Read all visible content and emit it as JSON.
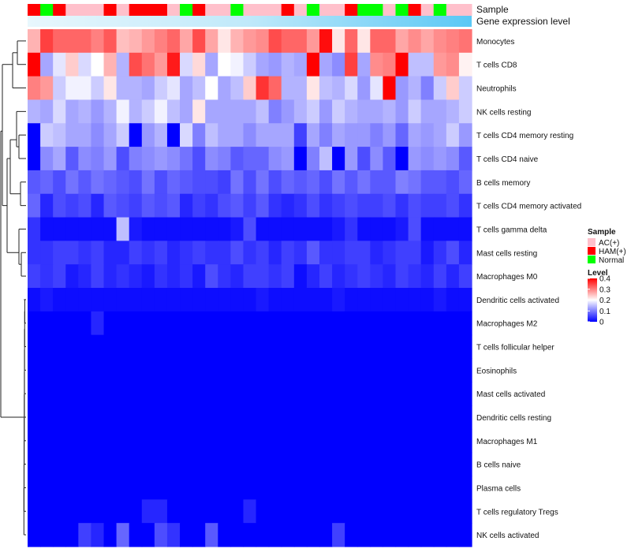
{
  "chart_data": {
    "type": "heatmap",
    "annotation_labels": {
      "sample": "Sample",
      "gene": "Gene expression level"
    },
    "rows": [
      "Monocytes",
      "T cells CD8",
      "Neutrophils",
      "NK cells resting",
      "T cells CD4 memory resting",
      "T cells CD4 naive",
      "B cells memory",
      "T cells CD4 memory activated",
      "T cells gamma delta",
      "Mast cells resting",
      "Macrophages M0",
      "Dendritic cells activated",
      "Macrophages M2",
      "T cells follicular helper",
      "Eosinophils",
      "Mast cells activated",
      "Dendritic cells resting",
      "Macrophages M1",
      "B cells naive",
      "Plasma cells",
      "T cells regulatory  Tregs",
      "NK cells activated"
    ],
    "sample_groups": [
      "H",
      "N",
      "H",
      "A",
      "A",
      "A",
      "H",
      "A",
      "H",
      "H",
      "H",
      "A",
      "N",
      "H",
      "A",
      "A",
      "N",
      "A",
      "A",
      "A",
      "H",
      "A",
      "N",
      "A",
      "A",
      "H",
      "N",
      "N",
      "A",
      "N",
      "H",
      "A",
      "N",
      "A",
      "A"
    ],
    "values": [
      [
        0.26,
        0.35,
        0.32,
        0.32,
        0.32,
        0.3,
        0.33,
        0.25,
        0.26,
        0.28,
        0.3,
        0.32,
        0.27,
        0.34,
        0.27,
        0.22,
        0.26,
        0.28,
        0.29,
        0.34,
        0.32,
        0.32,
        0.28,
        0.39,
        0.22,
        0.32,
        0.22,
        0.32,
        0.32,
        0.27,
        0.29,
        0.27,
        0.29,
        0.3,
        0.31
      ],
      [
        0.4,
        0.13,
        0.18,
        0.24,
        0.17,
        0.2,
        0.26,
        0.14,
        0.34,
        0.31,
        0.28,
        0.38,
        0.17,
        0.23,
        0.13,
        0.2,
        0.19,
        0.16,
        0.13,
        0.12,
        0.14,
        0.13,
        0.42,
        0.13,
        0.11,
        0.35,
        0.13,
        0.29,
        0.3,
        0.4,
        0.15,
        0.15,
        0.28,
        0.29,
        0.21
      ],
      [
        0.3,
        0.28,
        0.16,
        0.19,
        0.19,
        0.16,
        0.22,
        0.14,
        0.14,
        0.13,
        0.16,
        0.18,
        0.13,
        0.15,
        0.2,
        0.13,
        0.15,
        0.24,
        0.36,
        0.32,
        0.14,
        0.14,
        0.22,
        0.15,
        0.14,
        0.17,
        0.12,
        0.18,
        0.4,
        0.12,
        0.14,
        0.1,
        0.16,
        0.24,
        0.16
      ],
      [
        0.14,
        0.13,
        0.17,
        0.13,
        0.14,
        0.12,
        0.14,
        0.19,
        0.14,
        0.16,
        0.19,
        0.15,
        0.13,
        0.22,
        0.13,
        0.13,
        0.13,
        0.13,
        0.15,
        0.1,
        0.12,
        0.14,
        0.16,
        0.12,
        0.16,
        0.14,
        0.13,
        0.13,
        0.14,
        0.12,
        0.16,
        0.13,
        0.13,
        0.14,
        0.16
      ],
      [
        0.0,
        0.16,
        0.15,
        0.13,
        0.13,
        0.11,
        0.13,
        0.16,
        0.0,
        0.12,
        0.14,
        0.0,
        0.17,
        0.1,
        0.15,
        0.13,
        0.13,
        0.11,
        0.13,
        0.13,
        0.13,
        0.05,
        0.13,
        0.1,
        0.13,
        0.12,
        0.12,
        0.1,
        0.12,
        0.08,
        0.13,
        0.12,
        0.13,
        0.16,
        0.12
      ],
      [
        0.0,
        0.11,
        0.13,
        0.07,
        0.11,
        0.1,
        0.12,
        0.06,
        0.1,
        0.11,
        0.12,
        0.11,
        0.09,
        0.06,
        0.11,
        0.1,
        0.07,
        0.08,
        0.08,
        0.11,
        0.12,
        0.0,
        0.1,
        0.15,
        0.0,
        0.12,
        0.06,
        0.11,
        0.07,
        0.0,
        0.12,
        0.11,
        0.12,
        0.11,
        0.07
      ],
      [
        0.07,
        0.08,
        0.06,
        0.09,
        0.07,
        0.09,
        0.08,
        0.07,
        0.06,
        0.09,
        0.06,
        0.08,
        0.07,
        0.06,
        0.06,
        0.05,
        0.09,
        0.06,
        0.09,
        0.06,
        0.08,
        0.07,
        0.08,
        0.06,
        0.09,
        0.07,
        0.09,
        0.07,
        0.07,
        0.1,
        0.09,
        0.07,
        0.07,
        0.06,
        0.08
      ],
      [
        0.08,
        0.03,
        0.06,
        0.05,
        0.06,
        0.03,
        0.07,
        0.06,
        0.05,
        0.07,
        0.06,
        0.07,
        0.03,
        0.05,
        0.04,
        0.06,
        0.07,
        0.05,
        0.07,
        0.04,
        0.03,
        0.04,
        0.06,
        0.04,
        0.05,
        0.06,
        0.05,
        0.05,
        0.06,
        0.04,
        0.06,
        0.05,
        0.05,
        0.06,
        0.04
      ],
      [
        0.04,
        0.01,
        0.01,
        0.01,
        0.01,
        0.01,
        0.01,
        0.15,
        0.02,
        0.01,
        0.01,
        0.01,
        0.01,
        0.01,
        0.01,
        0.01,
        0.02,
        0.06,
        0.01,
        0.01,
        0.01,
        0.01,
        0.01,
        0.01,
        0.02,
        0.04,
        0.01,
        0.01,
        0.01,
        0.02,
        0.06,
        0.01,
        0.01,
        0.01,
        0.01
      ],
      [
        0.04,
        0.04,
        0.05,
        0.05,
        0.04,
        0.05,
        0.03,
        0.03,
        0.05,
        0.04,
        0.05,
        0.03,
        0.04,
        0.05,
        0.04,
        0.04,
        0.06,
        0.04,
        0.05,
        0.03,
        0.05,
        0.04,
        0.07,
        0.04,
        0.04,
        0.05,
        0.05,
        0.03,
        0.04,
        0.05,
        0.05,
        0.02,
        0.04,
        0.06,
        0.03
      ],
      [
        0.05,
        0.04,
        0.05,
        0.02,
        0.03,
        0.05,
        0.03,
        0.04,
        0.03,
        0.02,
        0.04,
        0.03,
        0.04,
        0.02,
        0.06,
        0.04,
        0.03,
        0.05,
        0.05,
        0.04,
        0.05,
        0.01,
        0.03,
        0.05,
        0.03,
        0.04,
        0.05,
        0.04,
        0.03,
        0.05,
        0.04,
        0.03,
        0.05,
        0.03,
        0.05
      ],
      [
        0.01,
        0.02,
        0.01,
        0.01,
        0.01,
        0.01,
        0.01,
        0.01,
        0.01,
        0.01,
        0.01,
        0.01,
        0.01,
        0.01,
        0.01,
        0.01,
        0.01,
        0.01,
        0.02,
        0.01,
        0.01,
        0.01,
        0.01,
        0.01,
        0.02,
        0.01,
        0.01,
        0.01,
        0.01,
        0.01,
        0.01,
        0.01,
        0.02,
        0.01,
        0.01
      ],
      [
        0.0,
        0.0,
        0.0,
        0.0,
        0.0,
        0.03,
        0.0,
        0.0,
        0.0,
        0.0,
        0.0,
        0.0,
        0.0,
        0.0,
        0.0,
        0.0,
        0.0,
        0.0,
        0.0,
        0.0,
        0.0,
        0.0,
        0.0,
        0.0,
        0.0,
        0.0,
        0.0,
        0.0,
        0.0,
        0.0,
        0.0,
        0.0,
        0.0,
        0.0,
        0.0
      ],
      [
        0.0,
        0.0,
        0.0,
        0.0,
        0.0,
        0.0,
        0.0,
        0.0,
        0.0,
        0.0,
        0.0,
        0.0,
        0.0,
        0.0,
        0.0,
        0.0,
        0.0,
        0.0,
        0.0,
        0.0,
        0.0,
        0.0,
        0.0,
        0.0,
        0.0,
        0.0,
        0.0,
        0.0,
        0.0,
        0.0,
        0.0,
        0.0,
        0.0,
        0.0,
        0.0
      ],
      [
        0.0,
        0.0,
        0.0,
        0.0,
        0.0,
        0.0,
        0.0,
        0.0,
        0.0,
        0.0,
        0.0,
        0.0,
        0.0,
        0.0,
        0.0,
        0.0,
        0.0,
        0.0,
        0.0,
        0.0,
        0.0,
        0.0,
        0.0,
        0.0,
        0.0,
        0.0,
        0.0,
        0.0,
        0.0,
        0.0,
        0.0,
        0.0,
        0.0,
        0.0,
        0.0
      ],
      [
        0.0,
        0.0,
        0.0,
        0.0,
        0.0,
        0.0,
        0.0,
        0.0,
        0.0,
        0.0,
        0.0,
        0.0,
        0.0,
        0.0,
        0.0,
        0.0,
        0.0,
        0.0,
        0.0,
        0.0,
        0.0,
        0.0,
        0.0,
        0.0,
        0.0,
        0.0,
        0.0,
        0.0,
        0.0,
        0.0,
        0.0,
        0.0,
        0.0,
        0.0,
        0.0
      ],
      [
        0.0,
        0.0,
        0.0,
        0.0,
        0.0,
        0.0,
        0.0,
        0.0,
        0.0,
        0.0,
        0.0,
        0.0,
        0.0,
        0.0,
        0.0,
        0.0,
        0.0,
        0.0,
        0.0,
        0.0,
        0.0,
        0.0,
        0.0,
        0.0,
        0.0,
        0.0,
        0.0,
        0.0,
        0.0,
        0.0,
        0.0,
        0.0,
        0.0,
        0.0,
        0.0
      ],
      [
        0.0,
        0.0,
        0.0,
        0.0,
        0.0,
        0.0,
        0.0,
        0.0,
        0.0,
        0.0,
        0.0,
        0.0,
        0.0,
        0.0,
        0.0,
        0.0,
        0.0,
        0.0,
        0.0,
        0.0,
        0.0,
        0.0,
        0.0,
        0.0,
        0.0,
        0.0,
        0.0,
        0.0,
        0.0,
        0.0,
        0.0,
        0.0,
        0.0,
        0.0,
        0.0
      ],
      [
        0.0,
        0.0,
        0.0,
        0.0,
        0.0,
        0.0,
        0.0,
        0.0,
        0.0,
        0.0,
        0.0,
        0.0,
        0.0,
        0.0,
        0.0,
        0.0,
        0.0,
        0.0,
        0.0,
        0.0,
        0.0,
        0.0,
        0.0,
        0.0,
        0.0,
        0.0,
        0.0,
        0.0,
        0.0,
        0.0,
        0.0,
        0.0,
        0.0,
        0.0,
        0.0
      ],
      [
        0.0,
        0.0,
        0.0,
        0.0,
        0.0,
        0.0,
        0.0,
        0.0,
        0.0,
        0.0,
        0.0,
        0.0,
        0.0,
        0.0,
        0.0,
        0.0,
        0.0,
        0.0,
        0.0,
        0.0,
        0.0,
        0.0,
        0.0,
        0.0,
        0.0,
        0.0,
        0.0,
        0.0,
        0.0,
        0.0,
        0.0,
        0.0,
        0.0,
        0.0,
        0.0
      ],
      [
        0.0,
        0.0,
        0.0,
        0.0,
        0.0,
        0.0,
        0.0,
        0.0,
        0.0,
        0.03,
        0.03,
        0.0,
        0.0,
        0.0,
        0.0,
        0.0,
        0.0,
        0.03,
        0.0,
        0.0,
        0.0,
        0.0,
        0.0,
        0.0,
        0.0,
        0.0,
        0.0,
        0.0,
        0.0,
        0.0,
        0.0,
        0.0,
        0.0,
        0.0,
        0.0
      ],
      [
        0.0,
        0.0,
        0.0,
        0.0,
        0.05,
        0.03,
        0.0,
        0.08,
        0.0,
        0.0,
        0.06,
        0.04,
        0.0,
        0.0,
        0.07,
        0.0,
        0.0,
        0.0,
        0.0,
        0.0,
        0.0,
        0.0,
        0.0,
        0.0,
        0.05,
        0.0,
        0.0,
        0.0,
        0.0,
        0.0,
        0.0,
        0.0,
        0.0,
        0.0,
        0.0
      ]
    ],
    "color_scale": {
      "min": 0,
      "max": 0.4,
      "stops": [
        "#0000ff",
        "#ffffff",
        "#ff0000"
      ],
      "mid": 0.2
    },
    "legend": {
      "sample_title": "Sample",
      "sample_entries": [
        {
          "code": "A",
          "label": "AC(+)",
          "color": "#ffc0cb"
        },
        {
          "code": "H",
          "label": "HAM(+)",
          "color": "#ff0000"
        },
        {
          "code": "N",
          "label": "Normal",
          "color": "#00ff00"
        }
      ],
      "level_title": "Level",
      "level_ticks": [
        "0.4",
        "0.3",
        "0.2",
        "0.1",
        "0"
      ],
      "level_tick_values": [
        0.4,
        0.3,
        0.2,
        0.1,
        0
      ],
      "position": "right"
    },
    "gene_bar_color": "#5bc8f5"
  }
}
